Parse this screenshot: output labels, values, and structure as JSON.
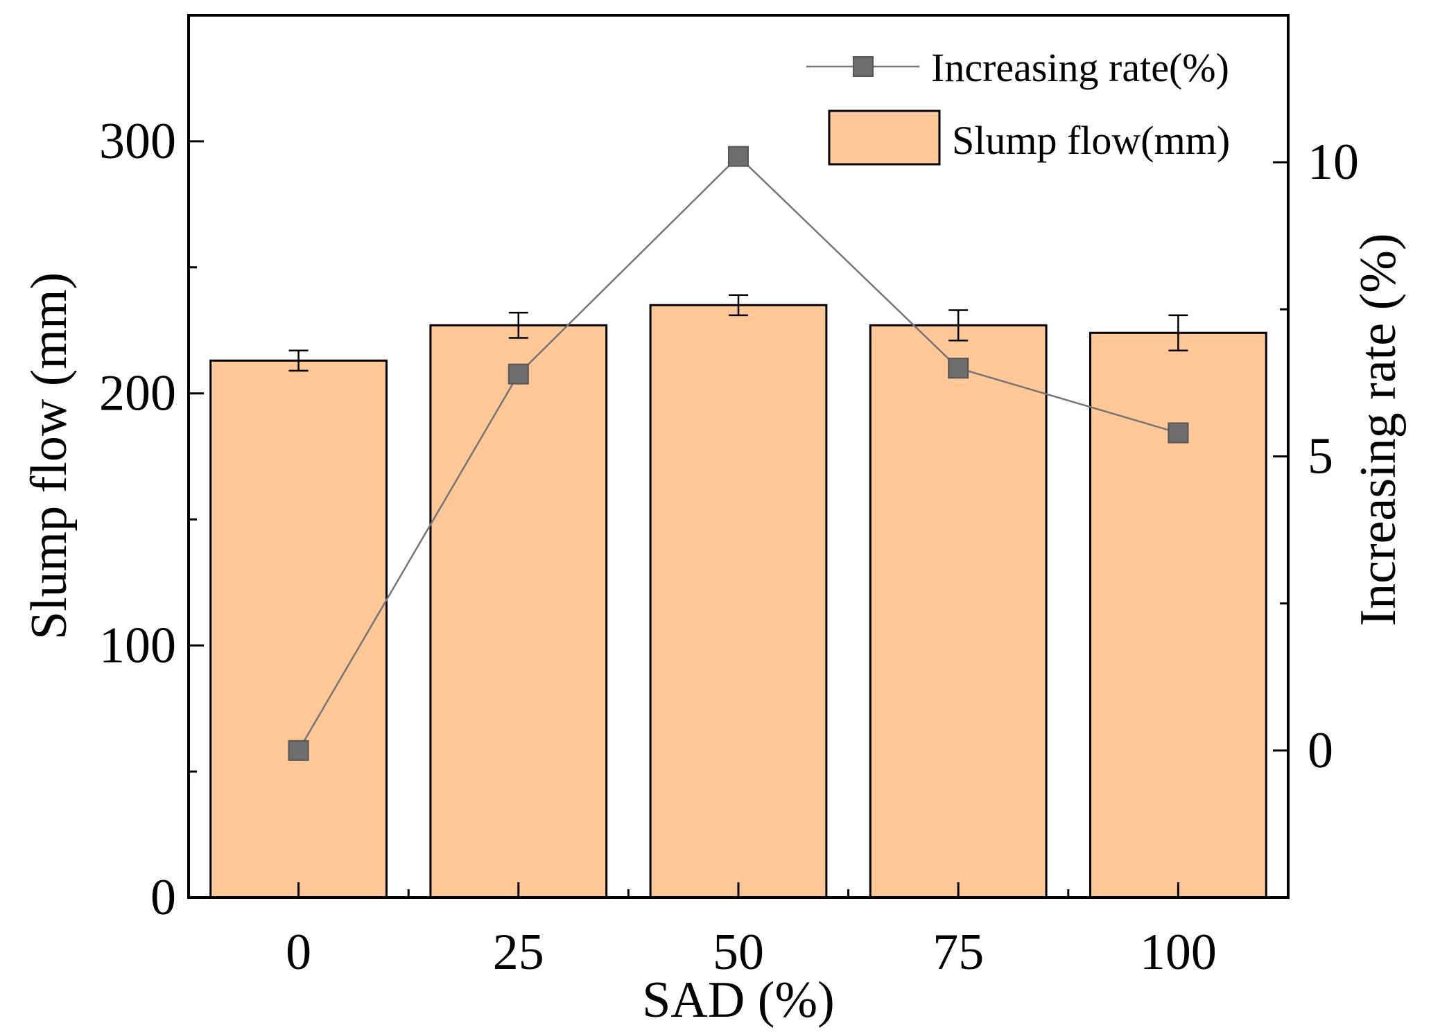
{
  "chart_data": {
    "type": "bar",
    "xlabel": "SAD (%)",
    "ylabel_left": "Slump flow (mm)",
    "ylabel_right": "Increasing rate (%)",
    "categories": [
      "0",
      "25",
      "50",
      "75",
      "100"
    ],
    "ylim_left": [
      0,
      350
    ],
    "ylim_right": [
      -2.5,
      12.5
    ],
    "yticks_left": [
      "0",
      "100",
      "200",
      "300"
    ],
    "yticks_right": [
      "0",
      "5",
      "10"
    ],
    "grid": false,
    "legend_position": "top-right",
    "series": [
      {
        "name": "Slump flow(mm)",
        "kind": "bar",
        "axis": "left",
        "values": [
          213,
          227,
          235,
          227,
          224
        ],
        "errors": [
          4,
          5,
          4,
          6,
          7
        ]
      },
      {
        "name": "Increasing rate(%)",
        "kind": "line",
        "axis": "right",
        "values": [
          0,
          6.4,
          10.1,
          6.5,
          5.4
        ]
      }
    ],
    "colors": {
      "bar_fill": "#FFC896",
      "bar_stroke": "#000000",
      "line": "#757575",
      "marker": "#6E6E6E"
    }
  }
}
